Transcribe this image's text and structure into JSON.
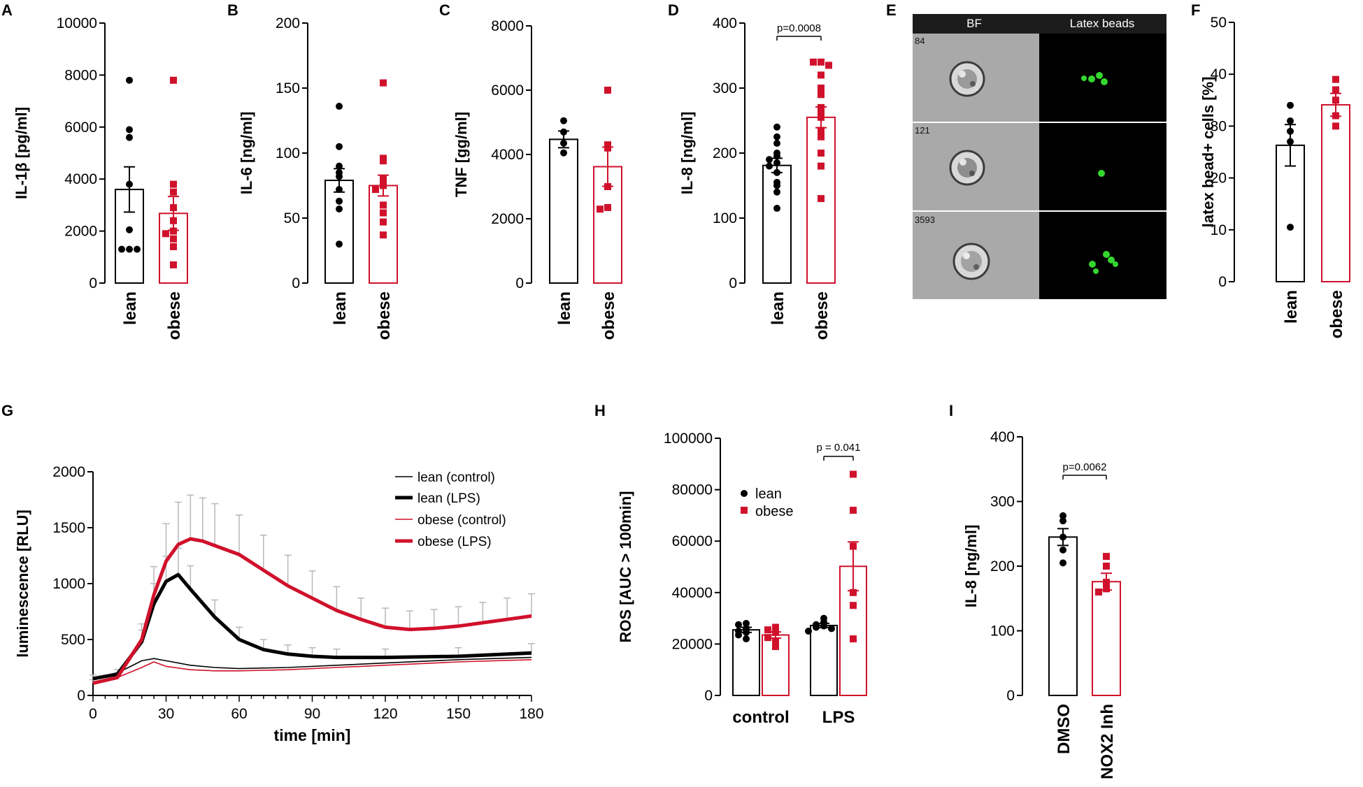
{
  "colors": {
    "lean": "#000000",
    "obese": "#d0112b",
    "error_gray": "#b8b8b8"
  },
  "chart_data": [
    {
      "panel": "A",
      "type": "bar",
      "ylabel": "IL-1β [pg/ml]",
      "ylim": [
        0,
        10000
      ],
      "yticks": [
        "0",
        "2000",
        "4000",
        "6000",
        "8000",
        "10000"
      ],
      "categories": [
        "lean",
        "obese"
      ],
      "means": [
        3600,
        2680
      ],
      "sem": [
        870,
        650
      ],
      "points": [
        [
          7800,
          5900,
          5600,
          3800,
          2050,
          1300,
          1300,
          1300
        ],
        [
          7800,
          3800,
          3500,
          2900,
          2400,
          2000,
          1900,
          1700,
          1400,
          700
        ]
      ]
    },
    {
      "panel": "B",
      "type": "bar",
      "ylabel": "IL-6 [ng/ml]",
      "ylim": [
        0,
        200
      ],
      "yticks": [
        "0",
        "50",
        "100",
        "150",
        "200"
      ],
      "categories": [
        "lean",
        "obese"
      ],
      "means": [
        79,
        75
      ],
      "sem": [
        9,
        8
      ],
      "points": [
        [
          136,
          105,
          90,
          85,
          82,
          72,
          63,
          57,
          30
        ],
        [
          154,
          96,
          94,
          80,
          75,
          72,
          60,
          54,
          47,
          37
        ]
      ]
    },
    {
      "panel": "C",
      "type": "bar",
      "ylabel": "TNF [gg/ml]",
      "ylim": [
        0,
        8000
      ],
      "yticks": [
        "0",
        "2000",
        "4000",
        "6000",
        "8000"
      ],
      "categories": [
        "lean",
        "obese"
      ],
      "means": [
        4470,
        3620
      ],
      "sem": [
        260,
        610
      ],
      "points": [
        [
          5050,
          4700,
          4350,
          4050
        ],
        [
          6000,
          4300,
          4200,
          3000,
          2350,
          2300
        ]
      ]
    },
    {
      "panel": "D",
      "type": "bar",
      "ylabel": "IL-8 [ng/ml]",
      "ylim": [
        0,
        400
      ],
      "yticks": [
        "0",
        "100",
        "200",
        "300",
        "400"
      ],
      "categories": [
        "lean",
        "obese"
      ],
      "means": [
        181,
        255
      ],
      "sem": [
        11,
        16
      ],
      "points": [
        [
          240,
          225,
          215,
          200,
          195,
          190,
          185,
          180,
          170,
          155,
          150,
          140,
          115
        ],
        [
          340,
          340,
          335,
          320,
          300,
          290,
          270,
          265,
          255,
          235,
          225,
          200,
          180,
          130
        ]
      ],
      "annotation": "p=0.0008"
    },
    {
      "panel": "F",
      "type": "bar",
      "ylabel": "latex bead+ cells [%]",
      "ylim": [
        0,
        50
      ],
      "yticks": [
        "0",
        "10",
        "20",
        "30",
        "40",
        "50"
      ],
      "categories": [
        "lean",
        "obese"
      ],
      "means": [
        26.3,
        34.1
      ],
      "sem": [
        4,
        2.2
      ],
      "points": [
        [
          34,
          31,
          29,
          27,
          10.5
        ],
        [
          39,
          37,
          35,
          32,
          30
        ]
      ]
    },
    {
      "panel": "G",
      "type": "line",
      "xlabel": "time [min]",
      "ylabel": "luminescence [RLU]",
      "xlim": [
        0,
        180
      ],
      "ylim": [
        0,
        2000
      ],
      "xticks": [
        "0",
        "30",
        "60",
        "90",
        "120",
        "150",
        "180"
      ],
      "yticks": [
        "0",
        "500",
        "1000",
        "1500",
        "2000"
      ],
      "series": [
        {
          "name": "lean (control)",
          "x": [
            0,
            10,
            20,
            25,
            30,
            40,
            50,
            60,
            80,
            100,
            120,
            150,
            180
          ],
          "y": [
            140,
            200,
            310,
            330,
            310,
            270,
            250,
            240,
            250,
            270,
            290,
            320,
            340
          ]
        },
        {
          "name": "lean (LPS)",
          "x": [
            0,
            10,
            20,
            25,
            30,
            35,
            40,
            50,
            60,
            70,
            80,
            90,
            100,
            120,
            150,
            180
          ],
          "y": [
            150,
            190,
            480,
            820,
            1020,
            1080,
            950,
            700,
            500,
            410,
            370,
            350,
            340,
            340,
            350,
            380
          ]
        },
        {
          "name": "obese (control)",
          "x": [
            0,
            10,
            20,
            25,
            30,
            40,
            50,
            60,
            80,
            100,
            120,
            150,
            180
          ],
          "y": [
            110,
            160,
            250,
            300,
            260,
            230,
            220,
            220,
            230,
            250,
            270,
            300,
            320
          ]
        },
        {
          "name": "obese (LPS)",
          "x": [
            0,
            10,
            20,
            25,
            30,
            35,
            40,
            45,
            50,
            60,
            70,
            80,
            90,
            100,
            110,
            120,
            130,
            140,
            150,
            160,
            170,
            180
          ],
          "y": [
            110,
            160,
            500,
            900,
            1200,
            1350,
            1400,
            1380,
            1340,
            1260,
            1120,
            980,
            870,
            760,
            680,
            610,
            590,
            600,
            620,
            650,
            680,
            710
          ]
        }
      ]
    },
    {
      "panel": "H",
      "type": "bar",
      "ylabel": "ROS [AUC > 100min]",
      "ylim": [
        0,
        100000
      ],
      "yticks": [
        "0",
        "20000",
        "40000",
        "60000",
        "80000",
        "100000"
      ],
      "categories": [
        "control",
        "LPS"
      ],
      "legend": [
        "lean",
        "obese"
      ],
      "groups": [
        {
          "means": [
            25500,
            23500
          ],
          "sem": [
            1000,
            1200
          ],
          "points": [
            [
              28000,
              27500,
              26000,
              25000,
              24500,
              23500,
              22000
            ],
            [
              26500,
              25500,
              24500,
              22500,
              21000,
              19000
            ]
          ]
        },
        {
          "means": [
            27200,
            50200
          ],
          "sem": [
            800,
            9500
          ],
          "points": [
            [
              30000,
              28500,
              27500,
              27000,
              26500,
              26000,
              25000
            ],
            [
              86000,
              72000,
              58000,
              40000,
              35000,
              22000
            ]
          ]
        }
      ],
      "annotation": "p = 0.041"
    },
    {
      "panel": "I",
      "type": "bar",
      "ylabel": "IL-8 [ng/ml]",
      "ylim": [
        0,
        400
      ],
      "yticks": [
        "0",
        "100",
        "200",
        "300",
        "400"
      ],
      "categories": [
        "DMSO",
        "NOX2 Inh"
      ],
      "means": [
        245,
        176
      ],
      "sem": [
        13,
        13
      ],
      "points": [
        [
          278,
          270,
          245,
          225,
          205
        ],
        [
          215,
          200,
          175,
          165,
          160
        ]
      ],
      "annotation": "p=0.0062"
    }
  ],
  "panels": {
    "A": "A",
    "B": "B",
    "C": "C",
    "D": "D",
    "E": "E",
    "F": "F",
    "G": "G",
    "H": "H",
    "I": "I"
  },
  "image_panel": {
    "col_headers": [
      "BF",
      "Latex beads"
    ],
    "row_ids": [
      "84",
      "121",
      "3593"
    ]
  }
}
